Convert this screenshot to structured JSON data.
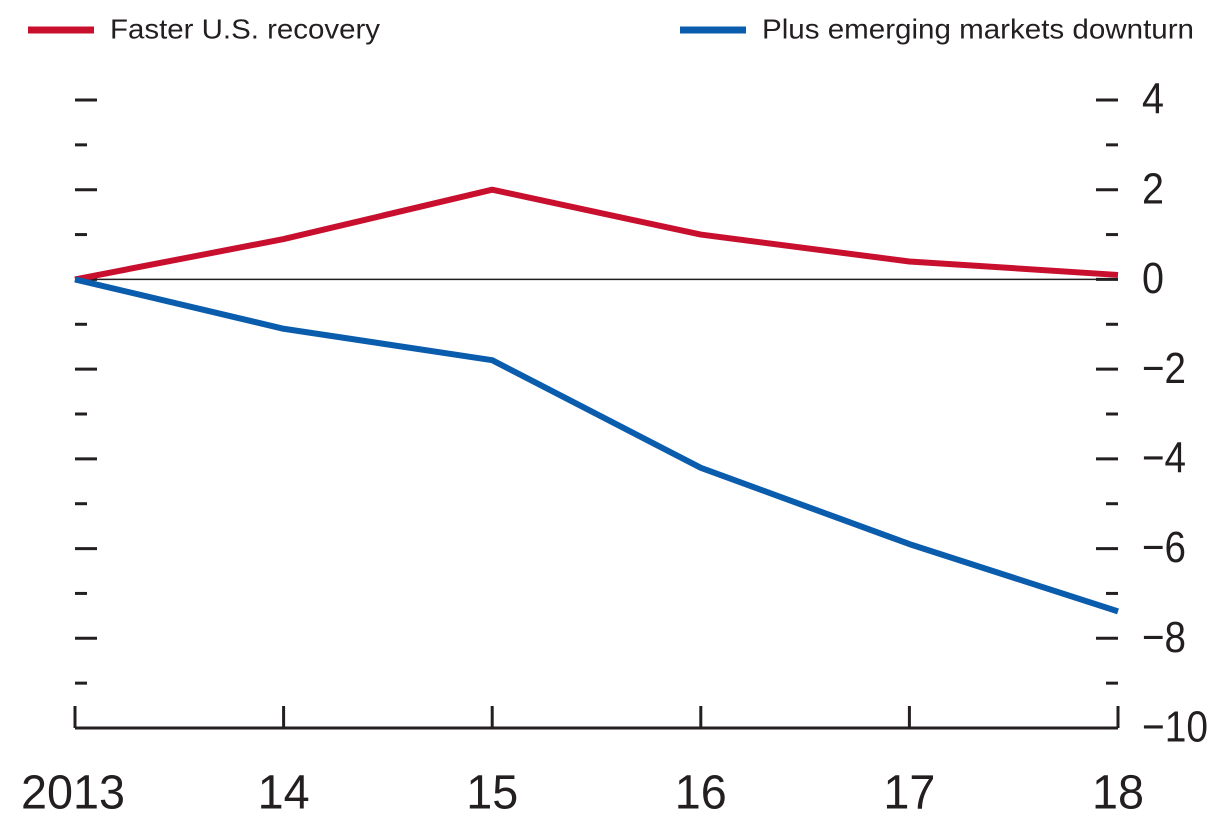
{
  "chart_data": {
    "type": "line",
    "categories": [
      "2013",
      "14",
      "15",
      "16",
      "17",
      "18"
    ],
    "series": [
      {
        "name": "Faster U.S. recovery",
        "color": "#c8102e",
        "values": [
          0,
          0.9,
          2.0,
          1.0,
          0.4,
          0.1
        ]
      },
      {
        "name": "Plus emerging markets downturn",
        "color": "#0a5cad",
        "values": [
          0,
          -1.1,
          -1.8,
          -4.2,
          -5.9,
          -7.4
        ]
      }
    ],
    "ylim": [
      -10,
      4
    ],
    "yticks": [
      4,
      2,
      0,
      {
        "value": -2,
        "label": "−2"
      },
      {
        "value": -4,
        "label": "−4"
      },
      {
        "value": -6,
        "label": "−6"
      },
      {
        "value": -8,
        "label": "−8"
      },
      {
        "value": -10,
        "label": "−10"
      }
    ],
    "yticks_minor": [
      3,
      1,
      -1,
      -3,
      -5,
      -7,
      -9
    ],
    "grid": false
  }
}
